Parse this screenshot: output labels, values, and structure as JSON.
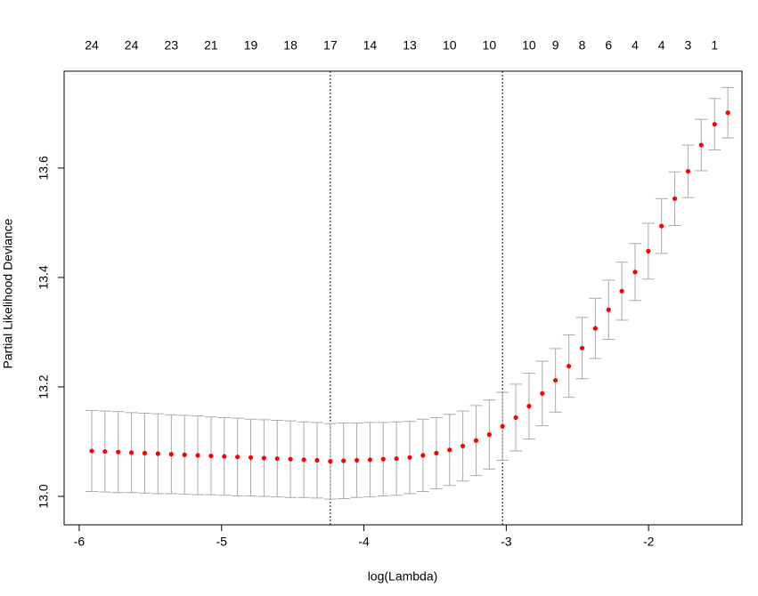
{
  "chart_data": {
    "type": "errorbar",
    "xlabel": "log(Lambda)",
    "ylabel": "Partial Likelihood Deviance",
    "x": [
      -5.912,
      -5.819,
      -5.726,
      -5.633,
      -5.54,
      -5.447,
      -5.353,
      -5.26,
      -5.167,
      -5.074,
      -4.981,
      -4.888,
      -4.795,
      -4.702,
      -4.609,
      -4.516,
      -4.422,
      -4.329,
      -4.236,
      -4.143,
      -4.05,
      -3.957,
      -3.864,
      -3.771,
      -3.678,
      -3.585,
      -3.491,
      -3.398,
      -3.305,
      -3.212,
      -3.119,
      -3.026,
      -2.933,
      -2.84,
      -2.747,
      -2.654,
      -2.56,
      -2.467,
      -2.374,
      -2.281,
      -2.188,
      -2.095,
      -2.002,
      -1.909,
      -1.816,
      -1.723,
      -1.63,
      -1.536,
      -1.443
    ],
    "values": [
      13.083,
      13.082,
      13.081,
      13.08,
      13.079,
      13.078,
      13.077,
      13.076,
      13.075,
      13.074,
      13.073,
      13.072,
      13.071,
      13.07,
      13.069,
      13.068,
      13.067,
      13.066,
      13.064,
      13.065,
      13.066,
      13.067,
      13.068,
      13.069,
      13.071,
      13.075,
      13.079,
      13.085,
      13.092,
      13.102,
      13.113,
      13.128,
      13.144,
      13.165,
      13.188,
      13.212,
      13.238,
      13.271,
      13.307,
      13.341,
      13.375,
      13.41,
      13.448,
      13.494,
      13.544,
      13.594,
      13.642,
      13.68,
      13.701
    ],
    "errors": [
      0.074,
      0.074,
      0.074,
      0.073,
      0.073,
      0.073,
      0.072,
      0.072,
      0.072,
      0.071,
      0.071,
      0.071,
      0.07,
      0.07,
      0.07,
      0.07,
      0.069,
      0.069,
      0.069,
      0.069,
      0.068,
      0.068,
      0.067,
      0.067,
      0.066,
      0.066,
      0.065,
      0.065,
      0.064,
      0.064,
      0.063,
      0.062,
      0.061,
      0.06,
      0.059,
      0.058,
      0.057,
      0.056,
      0.055,
      0.054,
      0.053,
      0.052,
      0.051,
      0.05,
      0.049,
      0.048,
      0.047,
      0.047,
      0.046
    ],
    "color": "#ff0000",
    "error_color": "#aaaaaa",
    "vlines": [
      -4.236,
      -3.026
    ],
    "top_ticks": [
      {
        "value": -5.912,
        "label": "24"
      },
      {
        "value": -5.633,
        "label": "24"
      },
      {
        "value": -5.353,
        "label": "23"
      },
      {
        "value": -5.074,
        "label": "21"
      },
      {
        "value": -4.795,
        "label": "19"
      },
      {
        "value": -4.516,
        "label": "18"
      },
      {
        "value": -4.236,
        "label": "17"
      },
      {
        "value": -3.957,
        "label": "14"
      },
      {
        "value": -3.678,
        "label": "13"
      },
      {
        "value": -3.398,
        "label": "10"
      },
      {
        "value": -3.119,
        "label": "10"
      },
      {
        "value": -2.84,
        "label": "10"
      },
      {
        "value": -2.654,
        "label": "9"
      },
      {
        "value": -2.467,
        "label": "8"
      },
      {
        "value": -2.281,
        "label": "6"
      },
      {
        "value": -2.095,
        "label": "4"
      },
      {
        "value": -1.909,
        "label": "4"
      },
      {
        "value": -1.723,
        "label": "3"
      },
      {
        "value": -1.536,
        "label": "1"
      }
    ],
    "xlim": [
      -6.106,
      -1.344
    ],
    "ylim": [
      12.948,
      13.777
    ],
    "xticks": [
      -6,
      -5,
      -4,
      -3,
      -2
    ],
    "yticks": [
      {
        "value": 13.0,
        "label": "13.0"
      },
      {
        "value": 13.2,
        "label": "13.2"
      },
      {
        "value": 13.4,
        "label": "13.4"
      },
      {
        "value": 13.6,
        "label": "13.6"
      }
    ]
  }
}
